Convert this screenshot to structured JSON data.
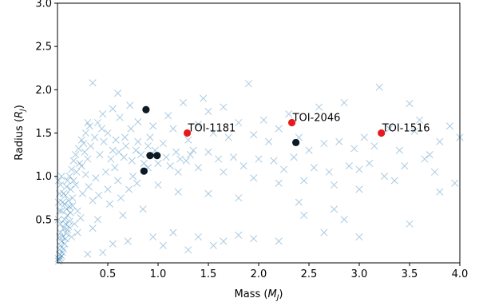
{
  "chart_data": {
    "type": "scatter",
    "xlabel": "Mass (M_J)",
    "xlabel_main": "Mass (",
    "xlabel_var": "M",
    "xlabel_sub": "J",
    "xlabel_end": ")",
    "ylabel_main": "Radius (",
    "ylabel_var": "R",
    "ylabel_sub": "J",
    "ylabel_end": ")",
    "xlim": [
      0.0,
      4.0
    ],
    "ylim": [
      0.0,
      3.0
    ],
    "xticks": [
      0.5,
      1.0,
      1.5,
      2.0,
      2.5,
      3.0,
      3.5,
      4.0
    ],
    "xtick_labels": [
      "0.5",
      "1.0",
      "1.5",
      "2.0",
      "2.5",
      "3.0",
      "3.5",
      "4.0"
    ],
    "yticks": [
      0.5,
      1.0,
      1.5,
      2.0,
      2.5,
      3.0
    ],
    "ytick_labels": [
      "0.5",
      "1.0",
      "1.5",
      "2.0",
      "2.5",
      "3.0"
    ],
    "grid": false,
    "colors": {
      "background": "#cfe0ef",
      "red": "#e8191c",
      "black": "#0c1a26",
      "marker": "#1f77b4"
    },
    "series": [
      {
        "marker": "x",
        "color": "#1f77b4",
        "points": [
          [
            0.35,
            2.08
          ],
          [
            0.6,
            1.96
          ],
          [
            0.72,
            1.82
          ],
          [
            0.55,
            1.78
          ],
          [
            0.45,
            1.72
          ],
          [
            0.3,
            1.62
          ],
          [
            0.62,
            1.68
          ],
          [
            0.8,
            1.63
          ],
          [
            0.95,
            1.58
          ],
          [
            1.1,
            1.7
          ],
          [
            1.25,
            1.85
          ],
          [
            1.45,
            1.9
          ],
          [
            1.5,
            1.75
          ],
          [
            1.65,
            1.8
          ],
          [
            1.9,
            2.07
          ],
          [
            2.05,
            1.65
          ],
          [
            2.3,
            1.72
          ],
          [
            2.6,
            1.8
          ],
          [
            2.85,
            1.85
          ],
          [
            3.2,
            2.03
          ],
          [
            3.5,
            1.84
          ],
          [
            3.6,
            1.65
          ],
          [
            3.9,
            1.58
          ],
          [
            1.15,
            1.55
          ],
          [
            1.3,
            1.42
          ],
          [
            1.4,
            1.6
          ],
          [
            1.55,
            1.5
          ],
          [
            1.7,
            1.45
          ],
          [
            1.8,
            1.62
          ],
          [
            1.95,
            1.48
          ],
          [
            2.1,
            1.4
          ],
          [
            2.2,
            1.55
          ],
          [
            2.4,
            1.45
          ],
          [
            2.5,
            1.3
          ],
          [
            2.65,
            1.38
          ],
          [
            2.8,
            1.4
          ],
          [
            2.95,
            1.32
          ],
          [
            3.05,
            1.45
          ],
          [
            3.15,
            1.35
          ],
          [
            3.3,
            1.55
          ],
          [
            3.4,
            1.3
          ],
          [
            3.55,
            1.52
          ],
          [
            3.7,
            1.25
          ],
          [
            3.8,
            1.4
          ],
          [
            4.0,
            1.45
          ],
          [
            1.5,
            1.28
          ],
          [
            1.6,
            1.2
          ],
          [
            1.75,
            1.22
          ],
          [
            1.85,
            1.12
          ],
          [
            2.0,
            1.2
          ],
          [
            2.15,
            1.18
          ],
          [
            2.25,
            1.08
          ],
          [
            2.35,
            1.22
          ],
          [
            2.55,
            1.1
          ],
          [
            2.7,
            1.05
          ],
          [
            2.9,
            1.12
          ],
          [
            3.0,
            1.08
          ],
          [
            3.1,
            1.15
          ],
          [
            3.25,
            1.0
          ],
          [
            3.45,
            1.12
          ],
          [
            3.65,
            1.2
          ],
          [
            3.75,
            1.05
          ],
          [
            3.95,
            0.92
          ],
          [
            1.2,
            1.05
          ],
          [
            1.4,
            1.1
          ],
          [
            1.65,
            1.05
          ],
          [
            1.95,
            0.98
          ],
          [
            2.2,
            0.92
          ],
          [
            2.45,
            0.95
          ],
          [
            2.75,
            0.9
          ],
          [
            3.0,
            0.85
          ],
          [
            3.35,
            0.95
          ],
          [
            3.8,
            0.82
          ],
          [
            1.0,
            0.9
          ],
          [
            1.2,
            0.82
          ],
          [
            1.5,
            0.8
          ],
          [
            1.8,
            0.75
          ],
          [
            2.4,
            0.7
          ],
          [
            2.75,
            0.62
          ],
          [
            2.65,
            0.35
          ],
          [
            2.85,
            0.5
          ],
          [
            3.0,
            0.3
          ],
          [
            3.5,
            0.45
          ],
          [
            2.45,
            0.55
          ],
          [
            1.15,
            0.35
          ],
          [
            1.4,
            0.3
          ],
          [
            1.55,
            0.2
          ],
          [
            1.65,
            0.25
          ],
          [
            1.8,
            0.32
          ],
          [
            1.95,
            0.28
          ],
          [
            2.2,
            0.25
          ],
          [
            1.05,
            0.2
          ],
          [
            0.95,
            0.3
          ],
          [
            0.7,
            0.25
          ],
          [
            0.55,
            0.22
          ],
          [
            0.35,
            0.4
          ],
          [
            0.3,
            0.1
          ],
          [
            0.45,
            0.12
          ],
          [
            1.3,
            0.15
          ],
          [
            0.85,
            0.62
          ],
          [
            0.65,
            0.55
          ],
          [
            0.4,
            0.5
          ],
          [
            0.2,
            0.6
          ],
          [
            0.25,
            0.8
          ],
          [
            0.35,
            0.72
          ],
          [
            0.5,
            0.85
          ],
          [
            0.6,
            0.95
          ],
          [
            0.75,
            1.0
          ],
          [
            0.9,
            1.1
          ],
          [
            0.48,
            1.05
          ],
          [
            0.38,
            0.98
          ],
          [
            0.28,
            1.02
          ],
          [
            0.22,
            1.15
          ],
          [
            0.3,
            1.2
          ],
          [
            0.42,
            1.25
          ],
          [
            0.55,
            1.3
          ],
          [
            0.68,
            1.35
          ],
          [
            0.8,
            1.4
          ],
          [
            0.92,
            1.45
          ],
          [
            1.05,
            1.38
          ],
          [
            0.18,
            0.9
          ],
          [
            0.15,
            0.75
          ],
          [
            0.12,
            0.65
          ],
          [
            0.1,
            0.55
          ],
          [
            0.08,
            0.45
          ],
          [
            0.06,
            0.4
          ],
          [
            0.05,
            0.3
          ],
          [
            0.04,
            0.25
          ],
          [
            0.03,
            0.2
          ],
          [
            0.02,
            0.15
          ],
          [
            0.02,
            0.1
          ],
          [
            0.01,
            0.05
          ],
          [
            0.03,
            0.35
          ],
          [
            0.07,
            0.5
          ],
          [
            0.09,
            0.62
          ],
          [
            0.11,
            0.72
          ],
          [
            0.13,
            0.85
          ],
          [
            0.16,
            0.95
          ],
          [
            0.19,
            1.05
          ],
          [
            0.24,
            1.12
          ],
          [
            0.27,
            1.28
          ],
          [
            0.33,
            1.35
          ],
          [
            0.37,
            1.45
          ],
          [
            0.44,
            1.55
          ],
          [
            0.5,
            1.5
          ],
          [
            0.58,
            1.42
          ],
          [
            0.66,
            1.22
          ],
          [
            0.74,
            1.18
          ],
          [
            0.83,
            1.25
          ],
          [
            0.97,
            1.3
          ],
          [
            1.08,
            1.22
          ],
          [
            1.18,
            1.28
          ],
          [
            1.28,
            1.18
          ],
          [
            1.35,
            1.3
          ],
          [
            0.26,
            1.38
          ],
          [
            0.31,
            0.88
          ],
          [
            0.41,
            0.78
          ],
          [
            0.52,
            0.68
          ],
          [
            0.63,
            0.75
          ],
          [
            0.71,
            0.85
          ],
          [
            0.79,
            0.92
          ],
          [
            0.2,
            0.35
          ],
          [
            0.14,
            0.3
          ],
          [
            0.17,
            0.45
          ],
          [
            0.23,
            0.52
          ],
          [
            0.01,
            0.02
          ],
          [
            0.02,
            0.04
          ],
          [
            0.03,
            0.06
          ],
          [
            0.04,
            0.08
          ],
          [
            0.05,
            0.12
          ],
          [
            0.06,
            0.16
          ],
          [
            0.07,
            0.22
          ],
          [
            0.08,
            0.28
          ],
          [
            0.09,
            0.34
          ],
          [
            0.1,
            0.38
          ],
          [
            0.11,
            0.42
          ],
          [
            0.12,
            0.48
          ],
          [
            0.13,
            0.58
          ],
          [
            0.15,
            0.66
          ],
          [
            0.04,
            0.6
          ],
          [
            0.05,
            0.7
          ],
          [
            0.06,
            0.8
          ],
          [
            0.07,
            0.68
          ],
          [
            0.08,
            0.78
          ],
          [
            0.09,
            0.88
          ],
          [
            0.1,
            0.95
          ],
          [
            0.12,
            1.0
          ],
          [
            0.14,
            1.08
          ],
          [
            0.16,
            1.18
          ],
          [
            0.18,
            1.25
          ],
          [
            0.21,
            1.32
          ],
          [
            0.24,
            1.42
          ],
          [
            0.28,
            1.5
          ],
          [
            0.32,
            1.58
          ],
          [
            0.4,
            1.62
          ],
          [
            0.46,
            1.4
          ],
          [
            0.53,
            1.2
          ],
          [
            0.57,
            1.1
          ],
          [
            0.61,
            1.28
          ],
          [
            0.67,
            1.45
          ],
          [
            0.73,
            1.55
          ],
          [
            0.78,
            1.3
          ],
          [
            0.86,
            1.15
          ],
          [
            0.9,
            1.35
          ],
          [
            1.0,
            1.15
          ],
          [
            1.12,
            1.12
          ],
          [
            1.22,
            1.2
          ],
          [
            1.32,
            1.25
          ],
          [
            0.02,
            0.3
          ],
          [
            0.03,
            0.45
          ],
          [
            0.01,
            0.5
          ],
          [
            0.02,
            0.6
          ],
          [
            0.01,
            0.7
          ],
          [
            0.02,
            0.8
          ],
          [
            0.03,
            0.9
          ],
          [
            0.01,
            0.95
          ],
          [
            0.04,
            1.0
          ]
        ]
      },
      {
        "marker": "o",
        "color": "#0c1a26",
        "points": [
          [
            0.88,
            1.77
          ],
          [
            0.92,
            1.24
          ],
          [
            0.99,
            1.24
          ],
          [
            0.86,
            1.06
          ],
          [
            2.37,
            1.39
          ]
        ]
      },
      {
        "marker": "o",
        "color": "#e8191c",
        "points": [
          [
            1.29,
            1.5
          ],
          [
            2.33,
            1.62
          ],
          [
            3.22,
            1.5
          ]
        ]
      }
    ],
    "annotations": [
      {
        "text": "TOI-1181",
        "x": 1.29,
        "y": 1.5
      },
      {
        "text": "TOI-2046",
        "x": 2.33,
        "y": 1.62
      },
      {
        "text": "TOI-1516",
        "x": 3.22,
        "y": 1.5
      }
    ]
  }
}
